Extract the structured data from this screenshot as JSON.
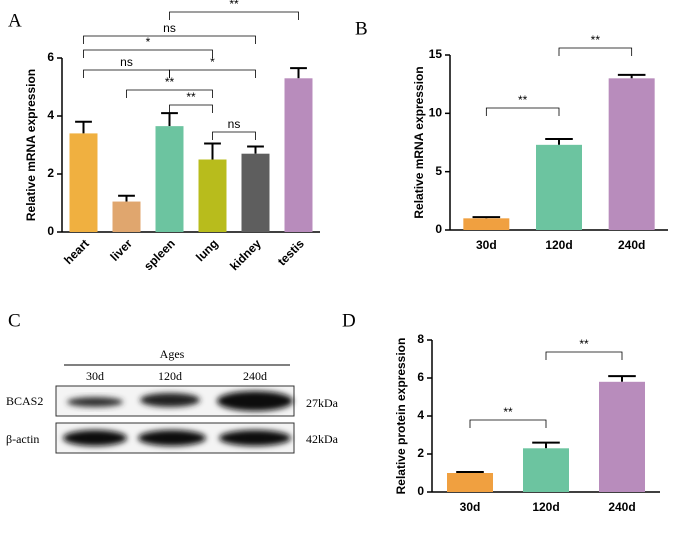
{
  "chart_data": [
    {
      "type": "bar",
      "panel": "A",
      "y_label": "Relative mRNA expression",
      "categories": [
        "heart",
        "liver",
        "spleen",
        "lung",
        "kidney",
        "testis"
      ],
      "values": [
        3.4,
        1.05,
        3.65,
        2.5,
        2.7,
        5.3
      ],
      "errors": [
        0.4,
        0.2,
        0.45,
        0.55,
        0.25,
        0.35
      ],
      "colors": [
        "#f0b040",
        "#e0a66e",
        "#6cc4a0",
        "#b8bc1c",
        "#5e5e5e",
        "#b88cbc"
      ],
      "ylim": [
        0,
        6
      ],
      "yticks": [
        0,
        2,
        4,
        6
      ],
      "brackets": [
        {
          "between": [
            "spleen",
            "testis"
          ],
          "label": "**"
        },
        {
          "between": [
            "heart",
            "kidney"
          ],
          "label": "ns"
        },
        {
          "between": [
            "heart",
            "lung"
          ],
          "label": "*"
        },
        {
          "between": [
            "heart",
            "spleen"
          ],
          "label": "ns"
        },
        {
          "between": [
            "spleen",
            "kidney"
          ],
          "label": "*"
        },
        {
          "between": [
            "liver",
            "lung"
          ],
          "label": "**"
        },
        {
          "between": [
            "spleen",
            "lung"
          ],
          "label": "**"
        },
        {
          "between": [
            "lung",
            "kidney"
          ],
          "label": "ns"
        }
      ]
    },
    {
      "type": "bar",
      "panel": "B",
      "y_label": "Relative mRNA expression",
      "categories": [
        "30d",
        "120d",
        "240d"
      ],
      "values": [
        1.0,
        7.3,
        13.0
      ],
      "errors": [
        0.1,
        0.5,
        0.3
      ],
      "colors": [
        "#f0a040",
        "#6cc4a0",
        "#b88cbc"
      ],
      "ylim": [
        0,
        15
      ],
      "yticks": [
        0,
        5,
        10,
        15
      ],
      "brackets": [
        {
          "between": [
            "30d",
            "120d"
          ],
          "label": "**"
        },
        {
          "between": [
            "120d",
            "240d"
          ],
          "label": "**"
        }
      ]
    },
    {
      "type": "bar",
      "panel": "D",
      "y_label": "Relative protein expression",
      "categories": [
        "30d",
        "120d",
        "240d"
      ],
      "values": [
        1.0,
        2.3,
        5.8
      ],
      "errors": [
        0.05,
        0.3,
        0.3
      ],
      "colors": [
        "#f0a040",
        "#6cc4a0",
        "#b88cbc"
      ],
      "ylim": [
        0,
        8
      ],
      "yticks": [
        0,
        2,
        4,
        6,
        8
      ],
      "brackets": [
        {
          "between": [
            "30d",
            "120d"
          ],
          "label": "**"
        },
        {
          "between": [
            "120d",
            "240d"
          ],
          "label": "**"
        }
      ]
    }
  ],
  "blot": {
    "panel": "C",
    "header": "Ages",
    "lanes": [
      "30d",
      "120d",
      "240d"
    ],
    "rows": [
      {
        "protein": "BCAS2",
        "size": "27kDa"
      },
      {
        "protein": "β-actin",
        "size": "42kDa"
      }
    ]
  }
}
